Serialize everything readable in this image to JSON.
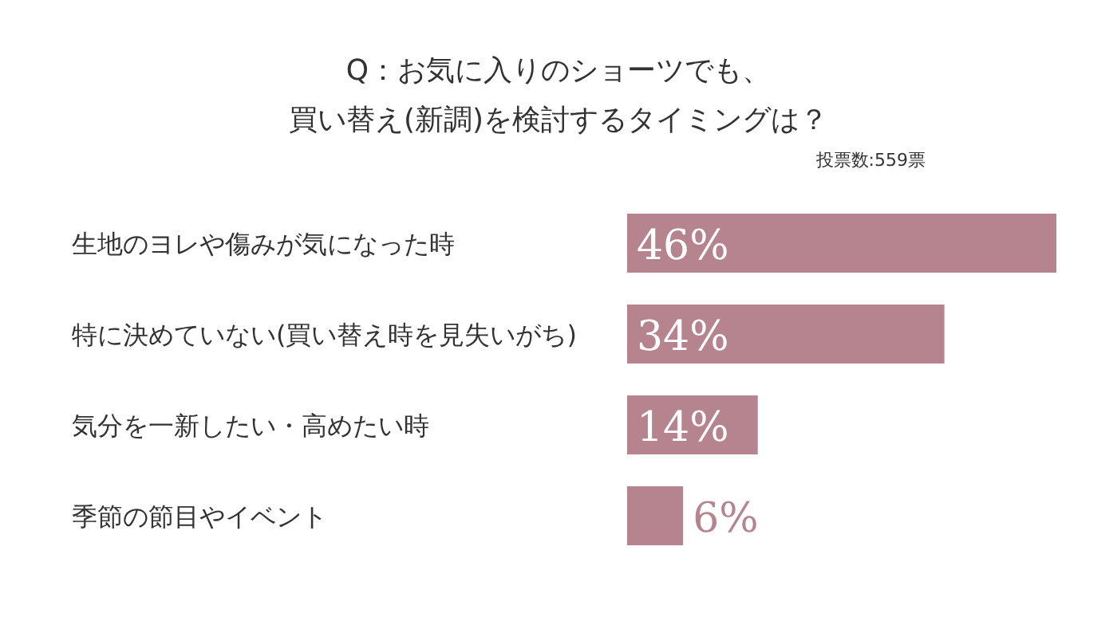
{
  "chart_data": {
    "type": "bar",
    "orientation": "horizontal",
    "title": "Q：お気に入りのショーツでも、",
    "subtitle": "買い替え(新調)を検討するタイミングは？",
    "annotations": [
      "投票数:559票"
    ],
    "categories": [
      "生地のヨレや傷みが気になった時",
      "特に決めていない(買い替え時を見失いがち)",
      "気分を一新したい・高めたい時",
      "季節の節目やイベント"
    ],
    "values": [
      46,
      34,
      14,
      6
    ],
    "color": "#b5848f",
    "value_labels": [
      "46%",
      "34%",
      "14%",
      "6%"
    ]
  }
}
